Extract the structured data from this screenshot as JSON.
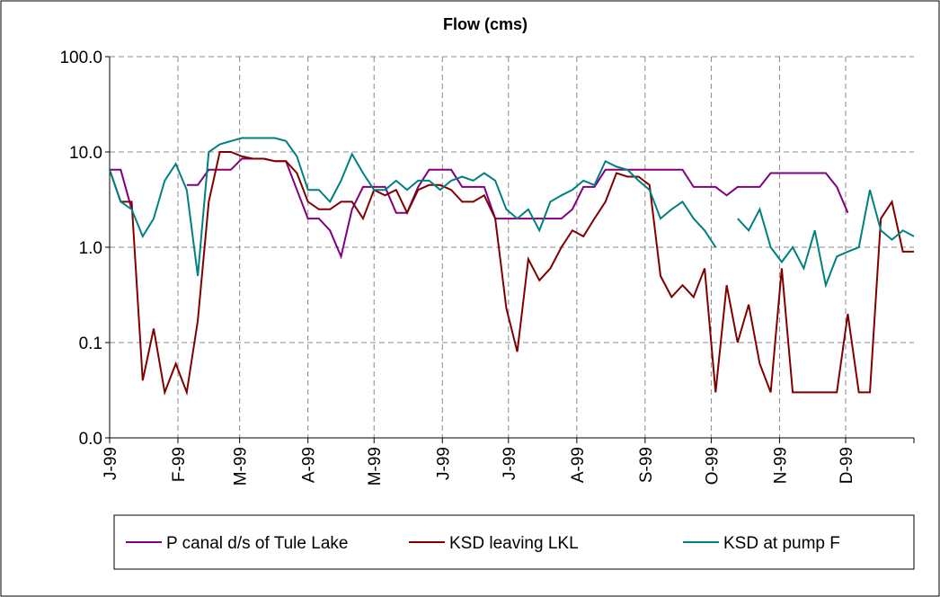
{
  "chart_data": {
    "type": "line",
    "title": "Flow (cms)",
    "log_y": true,
    "grid": true,
    "legend": "bottom",
    "x": [
      0,
      5,
      10,
      15,
      20,
      25,
      30,
      35,
      40,
      45,
      50,
      55,
      60,
      65,
      70,
      75,
      80,
      85,
      90,
      95,
      100,
      105,
      110,
      115,
      120,
      125,
      130,
      135,
      140,
      145,
      150,
      155,
      160,
      165,
      170,
      175,
      180,
      185,
      190,
      195,
      200,
      205,
      210,
      215,
      220,
      225,
      230,
      235,
      240,
      245,
      250,
      255,
      260,
      265,
      270,
      275,
      280,
      285,
      290,
      295,
      300,
      305,
      310,
      315,
      320,
      325,
      330,
      335,
      340,
      345,
      350,
      355,
      360,
      365
    ],
    "xlim": [
      0,
      365
    ],
    "xticks": [
      {
        "value": 0,
        "label": "J-99"
      },
      {
        "value": 31,
        "label": "F-99"
      },
      {
        "value": 59,
        "label": "M-99"
      },
      {
        "value": 90,
        "label": "A-99"
      },
      {
        "value": 120,
        "label": "M-99"
      },
      {
        "value": 151,
        "label": "J-99"
      },
      {
        "value": 181,
        "label": "J-99"
      },
      {
        "value": 212,
        "label": "A-99"
      },
      {
        "value": 243,
        "label": "S-99"
      },
      {
        "value": 273,
        "label": "O-99"
      },
      {
        "value": 304,
        "label": "N-99"
      },
      {
        "value": 334,
        "label": "D-99"
      }
    ],
    "ylim": [
      0.01,
      100
    ],
    "yticks": [
      {
        "value": 0.01,
        "label": "0.0"
      },
      0.1,
      {
        "value": 1,
        "label": "1.0"
      },
      {
        "value": 10,
        "label": "10.0"
      },
      {
        "value": 100,
        "label": "100.0"
      }
    ],
    "series": [
      {
        "name": "P canal d/s of Tule Lake",
        "color": "#800080",
        "values": [
          6.5,
          6.5,
          2.5,
          null,
          null,
          null,
          null,
          4.5,
          4.5,
          6.5,
          6.5,
          6.5,
          8.5,
          8.5,
          8.5,
          8,
          8,
          4,
          2,
          2,
          1.5,
          0.8,
          2.5,
          4.3,
          4.3,
          4.3,
          2.3,
          2.3,
          4.3,
          6.5,
          6.5,
          6.5,
          4.3,
          4.3,
          4.3,
          2,
          2,
          2,
          2,
          2,
          2,
          2,
          2.5,
          4.3,
          4.3,
          6.5,
          6.5,
          6.5,
          6.5,
          6.5,
          6.5,
          6.5,
          6.5,
          4.3,
          4.3,
          4.3,
          3.5,
          4.3,
          4.3,
          4.3,
          6,
          6,
          6,
          6,
          6,
          6,
          4.3,
          2.3,
          null,
          4.3,
          null,
          null,
          null,
          null
        ]
      },
      {
        "name": "KSD leaving LKL",
        "color": "#800000",
        "values": [
          6.5,
          3,
          3,
          0.04,
          0.14,
          0.03,
          0.06,
          0.03,
          0.17,
          3,
          10,
          10,
          9,
          8.5,
          8.5,
          8,
          8,
          6,
          3,
          2.5,
          2.5,
          3,
          3,
          2,
          4,
          3.5,
          4,
          2.3,
          4,
          4.5,
          4.5,
          4,
          3,
          3,
          3.5,
          2,
          0.23,
          0.08,
          0.75,
          0.45,
          0.6,
          1,
          1.5,
          1.3,
          2,
          3,
          6,
          5.5,
          5.5,
          4.5,
          0.5,
          0.3,
          0.4,
          0.3,
          0.6,
          0.03,
          0.4,
          0.1,
          0.25,
          0.06,
          0.03,
          0.6,
          0.03,
          0.03,
          0.03,
          0.03,
          0.03,
          0.2,
          0.03,
          0.03,
          2,
          3,
          0.9,
          0.9
        ]
      },
      {
        "name": "KSD at pump F",
        "color": "#008080",
        "values": [
          6.5,
          3,
          2.5,
          1.3,
          2,
          5,
          7.5,
          4,
          0.5,
          10,
          12,
          13,
          14,
          14,
          14,
          14,
          13,
          9,
          4,
          4,
          3,
          5,
          9.5,
          6,
          4,
          4,
          5,
          4,
          5,
          5,
          4,
          5,
          5.5,
          5,
          6,
          5,
          2.5,
          2,
          2.5,
          1.5,
          3,
          3.5,
          4,
          5,
          4.5,
          8,
          7,
          6.5,
          5,
          4,
          2,
          2.5,
          3,
          2,
          1.5,
          1,
          null,
          2,
          1.5,
          2.5,
          1,
          0.7,
          1,
          0.6,
          1.5,
          0.4,
          0.8,
          0.9,
          1,
          4,
          1.5,
          1.2,
          1.5,
          1.3
        ]
      }
    ]
  }
}
